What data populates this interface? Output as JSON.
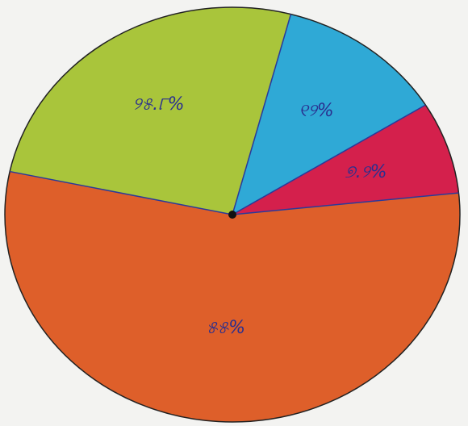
{
  "chart_data": {
    "type": "pie",
    "values": [
      25.8,
      12,
      7.2,
      55
    ],
    "value_labels": [
      "୨୫.୮%",
      "୧୨%",
      "୭.୨%",
      "୫୫%"
    ],
    "colors": [
      "#a9c53b",
      "#2fa9d6",
      "#d4204c",
      "#de5f2a"
    ]
  }
}
